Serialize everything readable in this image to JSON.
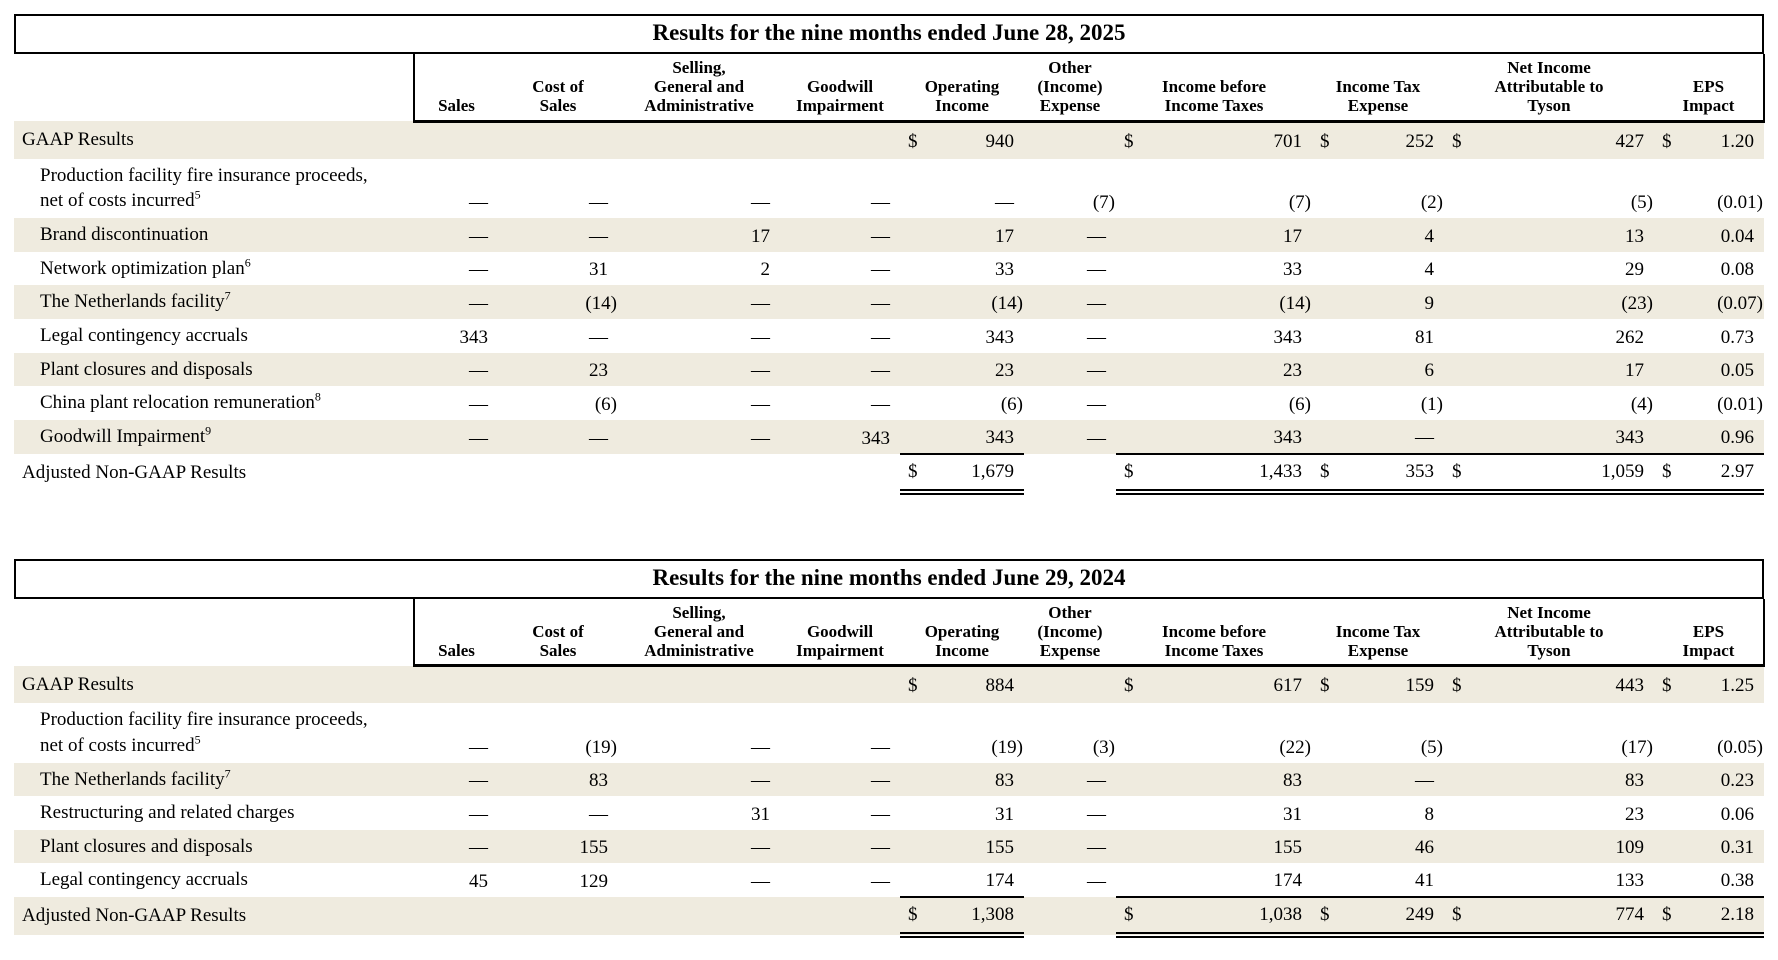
{
  "style": {
    "stripe_color": "#efebdf",
    "border_color": "#000000",
    "text_color": "#000000"
  },
  "tables": [
    {
      "id": "nine-months-2025",
      "title": "Results for the nine months ended June 28, 2025",
      "headers": [
        "Sales",
        "Cost of\nSales",
        "Selling,\nGeneral and\nAdministrative",
        "Goodwill\nImpairment",
        "Operating\nIncome",
        "Other\n(Income)\nExpense",
        "Income before\nIncome Taxes",
        "Income Tax\nExpense",
        "Net Income\nAttributable to\nTyson",
        "EPS\nImpact"
      ],
      "rows": [
        {
          "label": "GAAP Results",
          "sup": "",
          "indent": false,
          "stripe": true,
          "type": "gaap",
          "cells": [
            "",
            "",
            "",
            "",
            "$940",
            "",
            "$701",
            "$252",
            "$427",
            "$1.20"
          ]
        },
        {
          "label": "Production facility fire insurance proceeds, net of costs incurred",
          "sup": "5",
          "indent": true,
          "stripe": false,
          "type": "item",
          "cells": [
            "—",
            "—",
            "—",
            "—",
            "—",
            "(7)",
            "(7)",
            "(2)",
            "(5)",
            "(0.01)"
          ]
        },
        {
          "label": "Brand discontinuation",
          "sup": "",
          "indent": true,
          "stripe": true,
          "type": "item",
          "cells": [
            "—",
            "—",
            "17",
            "—",
            "17",
            "—",
            "17",
            "4",
            "13",
            "0.04"
          ]
        },
        {
          "label": "Network optimization plan",
          "sup": "6",
          "indent": true,
          "stripe": false,
          "type": "item",
          "cells": [
            "—",
            "31",
            "2",
            "—",
            "33",
            "—",
            "33",
            "4",
            "29",
            "0.08"
          ]
        },
        {
          "label": "The Netherlands facility",
          "sup": "7",
          "indent": true,
          "stripe": true,
          "type": "item",
          "cells": [
            "—",
            "(14)",
            "—",
            "—",
            "(14)",
            "—",
            "(14)",
            "9",
            "(23)",
            "(0.07)"
          ]
        },
        {
          "label": "Legal contingency accruals",
          "sup": "",
          "indent": true,
          "stripe": false,
          "type": "item",
          "cells": [
            "343",
            "—",
            "—",
            "—",
            "343",
            "—",
            "343",
            "81",
            "262",
            "0.73"
          ]
        },
        {
          "label": "Plant closures and disposals",
          "sup": "",
          "indent": true,
          "stripe": true,
          "type": "item",
          "cells": [
            "—",
            "23",
            "—",
            "—",
            "23",
            "—",
            "23",
            "6",
            "17",
            "0.05"
          ]
        },
        {
          "label": "China plant relocation remuneration",
          "sup": "8",
          "indent": true,
          "stripe": false,
          "type": "item",
          "cells": [
            "—",
            "(6)",
            "—",
            "—",
            "(6)",
            "—",
            "(6)",
            "(1)",
            "(4)",
            "(0.01)"
          ]
        },
        {
          "label": "Goodwill Impairment",
          "sup": "9",
          "indent": true,
          "stripe": true,
          "type": "item",
          "cells": [
            "—",
            "—",
            "—",
            "343",
            "343",
            "—",
            "343",
            "—",
            "343",
            "0.96"
          ]
        },
        {
          "label": "Adjusted Non-GAAP Results",
          "sup": "",
          "indent": false,
          "stripe": false,
          "type": "adjusted",
          "cells": [
            "",
            "",
            "",
            "",
            "$1,679",
            "",
            "$1,433",
            "$353",
            "$1,059",
            "$2.97"
          ]
        }
      ]
    },
    {
      "id": "nine-months-2024",
      "title": "Results for the nine months ended June 29, 2024",
      "headers": [
        "Sales",
        "Cost of\nSales",
        "Selling,\nGeneral and\nAdministrative",
        "Goodwill\nImpairment",
        "Operating\nIncome",
        "Other\n(Income)\nExpense",
        "Income before\nIncome Taxes",
        "Income Tax\nExpense",
        "Net Income\nAttributable to\nTyson",
        "EPS\nImpact"
      ],
      "rows": [
        {
          "label": "GAAP Results",
          "sup": "",
          "indent": false,
          "stripe": true,
          "type": "gaap",
          "cells": [
            "",
            "",
            "",
            "",
            "$884",
            "",
            "$617",
            "$159",
            "$443",
            "$1.25"
          ]
        },
        {
          "label": "Production facility fire insurance proceeds, net of costs incurred",
          "sup": "5",
          "indent": true,
          "stripe": false,
          "type": "item",
          "cells": [
            "—",
            "(19)",
            "—",
            "—",
            "(19)",
            "(3)",
            "(22)",
            "(5)",
            "(17)",
            "(0.05)"
          ]
        },
        {
          "label": "The Netherlands facility",
          "sup": "7",
          "indent": true,
          "stripe": true,
          "type": "item",
          "cells": [
            "—",
            "83",
            "—",
            "—",
            "83",
            "—",
            "83",
            "—",
            "83",
            "0.23"
          ]
        },
        {
          "label": "Restructuring and related charges",
          "sup": "",
          "indent": true,
          "stripe": false,
          "type": "item",
          "cells": [
            "—",
            "—",
            "31",
            "—",
            "31",
            "—",
            "31",
            "8",
            "23",
            "0.06"
          ]
        },
        {
          "label": "Plant closures and disposals",
          "sup": "",
          "indent": true,
          "stripe": true,
          "type": "item",
          "cells": [
            "—",
            "155",
            "—",
            "—",
            "155",
            "—",
            "155",
            "46",
            "109",
            "0.31"
          ]
        },
        {
          "label": "Legal contingency accruals",
          "sup": "",
          "indent": true,
          "stripe": false,
          "type": "item",
          "cells": [
            "45",
            "129",
            "—",
            "—",
            "174",
            "—",
            "174",
            "41",
            "133",
            "0.38"
          ]
        },
        {
          "label": "Adjusted Non-GAAP Results",
          "sup": "",
          "indent": false,
          "stripe": true,
          "type": "adjusted",
          "cells": [
            "",
            "",
            "",
            "",
            "$1,308",
            "",
            "$1,038",
            "$249",
            "$774",
            "$2.18"
          ]
        }
      ]
    }
  ]
}
